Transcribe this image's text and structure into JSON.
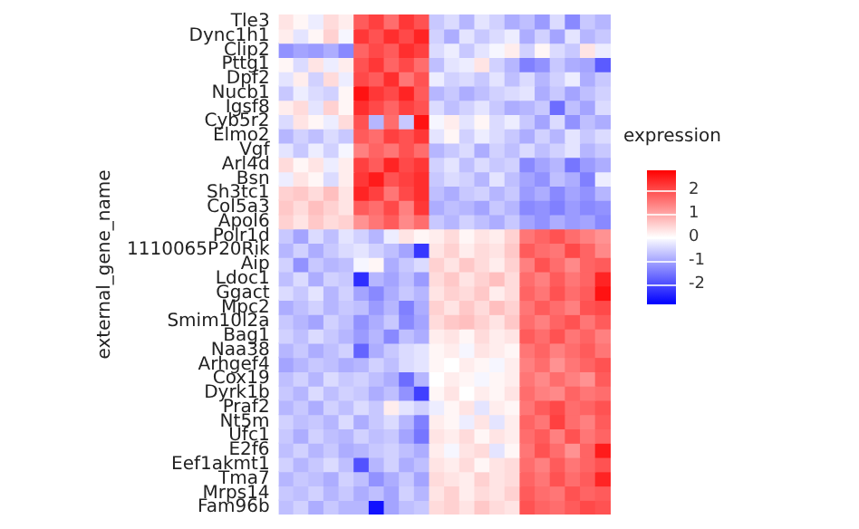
{
  "chart_data": {
    "type": "heatmap",
    "ylabel": "external_gene_name",
    "clabel": "expression",
    "clim": [
      -2.8,
      2.8
    ],
    "cticks": [
      -2,
      -1,
      0,
      1,
      2
    ],
    "tick_labels": "y",
    "grid": false,
    "legend": false,
    "categories": [
      null,
      null,
      null,
      null,
      null,
      null,
      null,
      null,
      null,
      null,
      null,
      null,
      null,
      null,
      null,
      null,
      null,
      null,
      null,
      null,
      null,
      null
    ],
    "y_categories": [
      "Tle3",
      "Dync1h1",
      "Clip2",
      "Pttg1",
      "Dpf2",
      "Nucb1",
      "Igsf8",
      "Cyb5r2",
      "Elmo2",
      "Vgf",
      "Arl4d",
      "Bsn",
      "Sh3tc1",
      "Col5a3",
      "Apol6",
      "Polr1d",
      "1110065P20Rik",
      "Aip",
      "Ldoc1",
      "Ggact",
      "Mpc2",
      "Smim10l2a",
      "Bag1",
      "Naa38",
      "Arhgef4",
      "Cox19",
      "Dyrk1b",
      "Praf2",
      "Nt5m",
      "Ufc1",
      "E2f6",
      "Eef1akmt1",
      "Tma7",
      "Mrps14",
      "Fam96b"
    ],
    "cells": [
      [
        0.3,
        0.1,
        -0.2,
        0.4,
        0.2,
        1.8,
        2.1,
        1.6,
        2.2,
        1.9,
        -0.6,
        -0.4,
        -0.8,
        -0.3,
        -0.5,
        -0.9,
        -0.7,
        -1.1,
        -0.4,
        -1.3,
        -0.6,
        -0.8
      ],
      [
        0.2,
        -0.3,
        0.1,
        0.5,
        -0.1,
        2.2,
        1.9,
        2.3,
        2.0,
        2.4,
        -0.5,
        -0.9,
        -0.3,
        -0.6,
        -0.4,
        -0.2,
        -0.9,
        -0.5,
        -1.0,
        -0.3,
        -0.8,
        -0.6
      ],
      [
        -1.2,
        -1.0,
        -1.1,
        -0.9,
        -1.3,
        1.7,
        2.0,
        1.8,
        2.3,
        2.1,
        -0.4,
        -0.2,
        -0.6,
        -0.3,
        -0.1,
        0.2,
        -0.5,
        0.1,
        -0.4,
        -0.6,
        0.3,
        -0.2
      ],
      [
        0.1,
        -0.4,
        0.3,
        -0.2,
        0.2,
        1.9,
        2.2,
        1.7,
        2.0,
        1.6,
        -0.7,
        -0.3,
        -0.2,
        0.3,
        -0.5,
        -0.8,
        -1.4,
        -1.2,
        -0.6,
        -0.9,
        -1.0,
        -1.8
      ],
      [
        -0.3,
        0.2,
        -0.5,
        0.4,
        -0.2,
        2.0,
        1.8,
        2.3,
        1.5,
        1.9,
        -0.2,
        -0.5,
        -0.4,
        -0.6,
        -0.3,
        -0.7,
        -0.4,
        -0.8,
        -0.5,
        -0.2,
        -0.9,
        -0.6
      ],
      [
        -0.6,
        -0.2,
        -0.4,
        -0.5,
        0.1,
        2.6,
        2.2,
        2.0,
        2.4,
        1.8,
        -0.8,
        -0.6,
        -0.9,
        -0.7,
        -0.5,
        -0.4,
        -0.3,
        -0.9,
        -0.6,
        -1.0,
        -0.7,
        -0.5
      ],
      [
        0.2,
        0.4,
        -0.3,
        0.5,
        0.1,
        2.3,
        2.0,
        1.7,
        2.1,
        1.9,
        -0.4,
        -0.7,
        -0.5,
        -0.3,
        -0.6,
        -0.9,
        -0.8,
        -0.6,
        -1.6,
        -0.7,
        -1.0,
        -0.4
      ],
      [
        -0.4,
        0.3,
        0.1,
        -0.2,
        0.4,
        1.9,
        -0.8,
        1.6,
        -0.6,
        2.6,
        -0.1,
        0.2,
        -0.3,
        0.1,
        -0.4,
        -0.2,
        -0.6,
        -1.0,
        -0.4,
        -1.2,
        -0.7,
        -0.9
      ],
      [
        -0.8,
        -0.5,
        -0.7,
        -0.4,
        -0.6,
        1.8,
        1.6,
        2.1,
        1.9,
        2.2,
        -0.3,
        0.1,
        -0.5,
        -0.2,
        -0.4,
        -0.6,
        -0.9,
        -0.5,
        -0.8,
        -0.3,
        -0.6,
        -0.4
      ],
      [
        -0.3,
        -0.6,
        -0.2,
        -0.5,
        -0.1,
        1.4,
        1.7,
        1.5,
        1.9,
        1.6,
        -0.8,
        -0.6,
        -0.4,
        -0.9,
        -0.5,
        -0.7,
        -0.4,
        -0.7,
        -0.5,
        -0.3,
        -0.8,
        -0.6
      ],
      [
        0.4,
        0.1,
        0.3,
        -0.2,
        0.2,
        2.1,
        1.8,
        2.4,
        2.0,
        2.2,
        -0.5,
        -0.3,
        -0.7,
        -0.4,
        -0.6,
        -0.5,
        -1.3,
        -1.0,
        -0.8,
        -1.5,
        -1.1,
        -0.9
      ],
      [
        -0.2,
        0.3,
        0.1,
        -0.4,
        0.2,
        2.2,
        2.5,
        1.9,
        2.1,
        2.3,
        -0.6,
        -0.4,
        -0.5,
        -0.8,
        -0.3,
        -0.7,
        -1.0,
        -1.2,
        -0.7,
        -0.9,
        -1.4,
        -0.2
      ],
      [
        0.5,
        0.6,
        0.4,
        0.7,
        0.3,
        2.4,
        2.1,
        1.5,
        2.0,
        2.3,
        -0.7,
        -0.9,
        -0.6,
        -0.5,
        -0.8,
        -0.6,
        -1.1,
        -0.9,
        -1.3,
        -1.0,
        -1.2,
        -0.8
      ],
      [
        0.6,
        0.4,
        0.7,
        0.5,
        0.3,
        1.8,
        1.6,
        2.0,
        1.4,
        2.2,
        -0.9,
        -0.7,
        -0.8,
        -1.0,
        -0.6,
        -0.8,
        -1.3,
        -1.2,
        -1.4,
        -1.1,
        -1.3,
        -1.2
      ],
      [
        0.5,
        0.3,
        0.6,
        0.4,
        0.5,
        1.2,
        1.5,
        1.8,
        1.3,
        1.6,
        -0.6,
        -0.8,
        -0.5,
        -0.7,
        -0.9,
        -0.6,
        -1.0,
        -1.2,
        -0.9,
        -1.1,
        -1.0,
        -1.3
      ],
      [
        -0.6,
        -1.0,
        -0.4,
        -0.7,
        -0.3,
        -0.5,
        -0.8,
        -0.2,
        0.3,
        0.1,
        0.2,
        0.4,
        0.1,
        0.3,
        0.2,
        0.5,
        1.5,
        1.7,
        1.9,
        1.6,
        1.4,
        1.2
      ],
      [
        -0.8,
        -0.5,
        -0.9,
        -0.6,
        -0.4,
        -0.3,
        -0.5,
        -0.7,
        -1.0,
        -2.2,
        0.3,
        0.5,
        0.2,
        0.4,
        0.3,
        0.6,
        1.8,
        1.6,
        1.5,
        2.0,
        1.7,
        1.3
      ],
      [
        -0.5,
        -1.2,
        -0.6,
        -0.8,
        -0.7,
        -0.1,
        0.1,
        -0.9,
        -0.6,
        -0.4,
        0.5,
        0.3,
        0.6,
        0.4,
        0.2,
        0.5,
        1.4,
        1.9,
        1.6,
        1.3,
        1.7,
        1.8
      ],
      [
        -0.7,
        -0.4,
        -0.9,
        -0.5,
        -0.6,
        -2.3,
        -0.8,
        -1.0,
        -0.7,
        -1.1,
        0.4,
        0.6,
        0.3,
        0.5,
        0.7,
        0.4,
        1.6,
        1.4,
        1.8,
        1.5,
        1.7,
        2.4
      ],
      [
        -0.4,
        -0.6,
        -0.3,
        -0.8,
        -0.5,
        -1.0,
        -1.3,
        -0.9,
        -0.6,
        -0.8,
        0.3,
        0.5,
        0.4,
        0.6,
        0.2,
        0.4,
        1.7,
        1.5,
        1.9,
        1.6,
        1.8,
        2.6
      ],
      [
        -0.9,
        -0.7,
        -0.5,
        -0.8,
        -0.6,
        -0.7,
        -1.1,
        -0.8,
        -1.4,
        -0.9,
        0.5,
        0.3,
        0.6,
        0.4,
        0.7,
        0.5,
        1.5,
        1.8,
        1.6,
        1.4,
        1.9,
        2.0
      ],
      [
        -0.6,
        -0.8,
        -1.0,
        -0.5,
        -0.7,
        -1.2,
        -0.9,
        -0.6,
        -1.3,
        -1.0,
        0.4,
        0.6,
        0.7,
        0.5,
        0.3,
        0.6,
        1.6,
        1.4,
        1.7,
        1.9,
        1.5,
        1.8
      ],
      [
        -0.5,
        -0.7,
        -0.4,
        -0.6,
        -0.8,
        -1.1,
        -0.8,
        -1.3,
        -0.7,
        -0.9,
        0.2,
        0.3,
        0.1,
        0.4,
        0.2,
        0.3,
        1.8,
        1.6,
        1.9,
        1.5,
        1.7,
        1.4
      ],
      [
        -0.8,
        -0.6,
        -0.9,
        -0.7,
        -0.5,
        -1.7,
        -0.9,
        -0.6,
        -0.4,
        -0.3,
        0.1,
        0.2,
        -0.1,
        0.3,
        0.2,
        0.1,
        1.5,
        1.7,
        1.4,
        1.6,
        1.8,
        1.5
      ],
      [
        -1.0,
        -0.8,
        -0.6,
        -0.7,
        -0.9,
        -0.8,
        -0.5,
        -0.7,
        -0.4,
        -0.3,
        0.1,
        0.0,
        0.2,
        0.1,
        -0.1,
        0.2,
        1.4,
        1.6,
        1.2,
        1.5,
        1.7,
        1.9
      ],
      [
        -0.7,
        -0.5,
        -0.8,
        -0.4,
        -0.6,
        -0.5,
        -0.7,
        -0.9,
        -1.6,
        -0.8,
        0.0,
        0.2,
        0.1,
        -0.1,
        0.1,
        0.2,
        1.5,
        1.3,
        1.6,
        1.4,
        1.2,
        1.8
      ],
      [
        -0.6,
        -0.8,
        -0.4,
        -0.7,
        -0.5,
        -0.6,
        -0.9,
        -0.7,
        -1.2,
        -2.1,
        0.1,
        0.3,
        0.0,
        0.2,
        0.1,
        0.3,
        1.6,
        1.4,
        1.3,
        1.7,
        1.5,
        1.6
      ],
      [
        -0.8,
        -0.6,
        -0.9,
        -0.5,
        -0.7,
        -0.4,
        -0.6,
        0.2,
        -0.3,
        -0.5,
        -0.2,
        0.1,
        0.3,
        -0.3,
        0.2,
        0.1,
        1.5,
        1.8,
        2.0,
        1.6,
        1.7,
        1.9
      ],
      [
        -0.5,
        -0.7,
        -0.6,
        -0.8,
        -0.4,
        -0.9,
        -0.6,
        -0.4,
        -0.8,
        -1.4,
        0.2,
        0.1,
        -0.2,
        0.3,
        -0.3,
        0.2,
        1.7,
        1.5,
        2.1,
        1.6,
        1.4,
        1.8
      ],
      [
        -0.6,
        -0.9,
        -0.5,
        -0.7,
        -0.8,
        -0.5,
        -0.7,
        -0.6,
        -1.0,
        -1.5,
        0.3,
        0.2,
        0.4,
        0.1,
        0.3,
        0.2,
        1.6,
        1.8,
        1.4,
        1.9,
        1.5,
        1.7
      ],
      [
        -0.7,
        -0.5,
        -0.8,
        -0.6,
        -0.9,
        -0.8,
        -0.6,
        -0.5,
        -0.7,
        -0.9,
        0.2,
        -0.1,
        0.3,
        0.4,
        -0.3,
        0.1,
        1.5,
        1.9,
        1.6,
        1.2,
        1.7,
        2.5
      ],
      [
        -0.5,
        -0.8,
        -0.6,
        -0.4,
        -0.7,
        -1.9,
        -0.8,
        -0.5,
        -0.9,
        -0.7,
        0.3,
        0.2,
        0.4,
        0.1,
        0.3,
        0.4,
        1.6,
        1.4,
        1.8,
        1.5,
        1.7,
        1.9
      ],
      [
        -0.8,
        -0.6,
        -0.7,
        -0.9,
        -0.5,
        -0.7,
        -1.2,
        -0.9,
        -0.6,
        -1.0,
        0.4,
        0.3,
        0.2,
        0.5,
        0.3,
        0.4,
        1.7,
        1.5,
        1.9,
        1.6,
        1.8,
        2.4
      ],
      [
        -0.6,
        -0.7,
        -0.5,
        -0.8,
        -0.6,
        -0.9,
        -0.7,
        -1.0,
        -0.5,
        -0.8,
        0.3,
        0.5,
        0.2,
        0.4,
        0.3,
        0.5,
        1.8,
        1.6,
        1.5,
        1.9,
        1.7,
        1.8
      ],
      [
        -0.7,
        -0.5,
        -0.9,
        -0.6,
        -0.8,
        -0.8,
        -2.6,
        -1.0,
        -0.7,
        -0.6,
        0.4,
        0.5,
        0.3,
        0.6,
        0.4,
        0.3,
        1.9,
        1.7,
        1.6,
        1.8,
        2.0,
        1.9
      ]
    ]
  }
}
